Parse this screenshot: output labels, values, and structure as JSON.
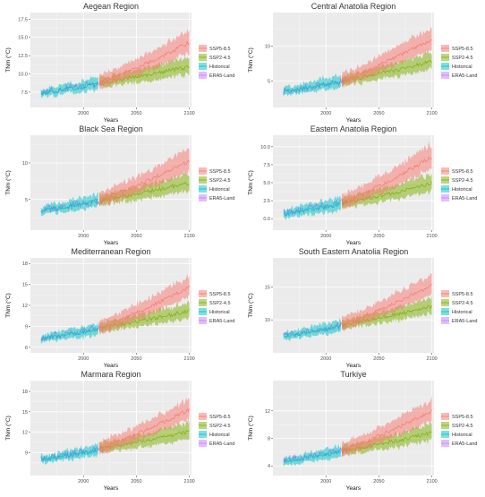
{
  "figure": {
    "series_names": [
      "SSP5-8.5",
      "SSP2-4.5",
      "Historical",
      "ERA5-Land"
    ],
    "colors": {
      "SSP5-8.5": "#f8766d",
      "SSP2-4.5": "#7cae00",
      "Historical": "#00bfc4",
      "ERA5-Land": "#c77cff",
      "panel_bg": "#ebebeb",
      "grid": "#ffffff"
    },
    "shared_xlabel": "Years",
    "shared_ylabel": "TNm (°C)"
  },
  "chart_data": [
    {
      "type": "line",
      "title": "Aegean Region",
      "xlabel": "Years",
      "ylabel": "TNm (°C)",
      "xlim": [
        1950,
        2102
      ],
      "ylim": [
        5.4,
        18.4
      ],
      "xticks": [
        2000,
        2050,
        2100
      ],
      "xtick_labels": [
        "2000",
        "2050",
        "2100"
      ],
      "yticks": [
        7.5,
        10.0,
        12.5,
        15.0,
        17.5
      ],
      "ytick_labels": [
        "7.5",
        "10.0",
        "12.5",
        "15.0",
        "17.5"
      ],
      "grid": true,
      "legend_position": "right",
      "series": [
        {
          "name": "ERA5-Land",
          "x_range": [
            1960,
            2020
          ],
          "start": 7.5,
          "end": 8.8,
          "spread": 0.6
        },
        {
          "name": "Historical",
          "x_range": [
            1960,
            2014
          ],
          "start": 7.3,
          "end": 8.6,
          "spread": 1.3
        },
        {
          "name": "SSP2-4.5",
          "x_range": [
            2015,
            2100
          ],
          "start": 8.8,
          "end": 11.0,
          "spread": 1.8
        },
        {
          "name": "SSP5-8.5",
          "x_range": [
            2015,
            2100
          ],
          "start": 8.9,
          "end": 14.3,
          "spread": 2.5
        }
      ]
    },
    {
      "type": "line",
      "title": "Central Anatolia Region",
      "xlabel": "Years",
      "ylabel": "TNm (°C)",
      "xlim": [
        1950,
        2102
      ],
      "ylim": [
        1.2,
        14.8
      ],
      "xticks": [
        2000,
        2050,
        2100
      ],
      "xtick_labels": [
        "2000",
        "2050",
        "2100"
      ],
      "yticks": [
        5,
        10
      ],
      "ytick_labels": [
        "5",
        "10"
      ],
      "grid": true,
      "legend_position": "right",
      "series": [
        {
          "name": "ERA5-Land",
          "x_range": [
            1960,
            2020
          ],
          "start": 3.5,
          "end": 5.0,
          "spread": 0.7
        },
        {
          "name": "Historical",
          "x_range": [
            1960,
            2014
          ],
          "start": 3.5,
          "end": 4.9,
          "spread": 1.4
        },
        {
          "name": "SSP2-4.5",
          "x_range": [
            2015,
            2100
          ],
          "start": 5.0,
          "end": 7.8,
          "spread": 1.9
        },
        {
          "name": "SSP5-8.5",
          "x_range": [
            2015,
            2100
          ],
          "start": 5.1,
          "end": 11.0,
          "spread": 2.6
        }
      ]
    },
    {
      "type": "line",
      "title": "Black Sea Region",
      "xlabel": "Years",
      "ylabel": "TNm (°C)",
      "xlim": [
        1950,
        2102
      ],
      "ylim": [
        0.8,
        13.8
      ],
      "xticks": [
        2000,
        2050,
        2100
      ],
      "xtick_labels": [
        "2000",
        "2050",
        "2100"
      ],
      "yticks": [
        5,
        10
      ],
      "ytick_labels": [
        "5",
        "10"
      ],
      "grid": true,
      "legend_position": "right",
      "series": [
        {
          "name": "ERA5-Land",
          "x_range": [
            1960,
            2020
          ],
          "start": 3.5,
          "end": 4.9,
          "spread": 0.7
        },
        {
          "name": "Historical",
          "x_range": [
            1960,
            2014
          ],
          "start": 3.4,
          "end": 4.8,
          "spread": 1.4
        },
        {
          "name": "SSP2-4.5",
          "x_range": [
            2015,
            2100
          ],
          "start": 4.9,
          "end": 7.3,
          "spread": 1.9
        },
        {
          "name": "SSP5-8.5",
          "x_range": [
            2015,
            2100
          ],
          "start": 5.0,
          "end": 10.3,
          "spread": 2.6
        }
      ]
    },
    {
      "type": "line",
      "title": "Eastern Anatolia Region",
      "xlabel": "Years",
      "ylabel": "TNm (°C)",
      "xlim": [
        1950,
        2102
      ],
      "ylim": [
        -1.6,
        11.6
      ],
      "xticks": [
        2000,
        2050,
        2100
      ],
      "xtick_labels": [
        "2000",
        "2050",
        "2100"
      ],
      "yticks": [
        0.0,
        2.5,
        5.0,
        7.5,
        10.0
      ],
      "ytick_labels": [
        "0.0",
        "2.5",
        "5.0",
        "7.5",
        "10.0"
      ],
      "grid": true,
      "legend_position": "right",
      "series": [
        {
          "name": "ERA5-Land",
          "x_range": [
            1960,
            2020
          ],
          "start": 0.7,
          "end": 2.3,
          "spread": 0.7
        },
        {
          "name": "Historical",
          "x_range": [
            1960,
            2014
          ],
          "start": 0.6,
          "end": 2.0,
          "spread": 1.5
        },
        {
          "name": "SSP2-4.5",
          "x_range": [
            2015,
            2100
          ],
          "start": 2.1,
          "end": 4.9,
          "spread": 2.0
        },
        {
          "name": "SSP5-8.5",
          "x_range": [
            2015,
            2100
          ],
          "start": 2.2,
          "end": 8.6,
          "spread": 2.7
        }
      ]
    },
    {
      "type": "line",
      "title": "Mediterranean Region",
      "xlabel": "Years",
      "ylabel": "TNm (°C)",
      "xlim": [
        1950,
        2102
      ],
      "ylim": [
        5.2,
        18.8
      ],
      "xticks": [
        2000,
        2050,
        2100
      ],
      "xtick_labels": [
        "2000",
        "2050",
        "2100"
      ],
      "yticks": [
        6,
        9,
        12,
        15,
        18
      ],
      "ytick_labels": [
        "6",
        "9",
        "12",
        "15",
        "18"
      ],
      "grid": true,
      "legend_position": "right",
      "series": [
        {
          "name": "ERA5-Land",
          "x_range": [
            1960,
            2020
          ],
          "start": 7.3,
          "end": 8.9,
          "spread": 0.6
        },
        {
          "name": "Historical",
          "x_range": [
            1960,
            2014
          ],
          "start": 7.2,
          "end": 8.5,
          "spread": 1.3
        },
        {
          "name": "SSP2-4.5",
          "x_range": [
            2015,
            2100
          ],
          "start": 8.8,
          "end": 11.2,
          "spread": 1.8
        },
        {
          "name": "SSP5-8.5",
          "x_range": [
            2015,
            2100
          ],
          "start": 8.9,
          "end": 14.6,
          "spread": 2.5
        }
      ]
    },
    {
      "type": "line",
      "title": "South Eastern Anatolia Region",
      "xlabel": "Years",
      "ylabel": "TNm (°C)",
      "xlim": [
        1950,
        2102
      ],
      "ylim": [
        5.0,
        19.4
      ],
      "xticks": [
        2000,
        2050,
        2100
      ],
      "xtick_labels": [
        "2000",
        "2050",
        "2100"
      ],
      "yticks": [
        10,
        15
      ],
      "ytick_labels": [
        "10",
        "15"
      ],
      "grid": true,
      "legend_position": "right",
      "series": [
        {
          "name": "ERA5-Land",
          "x_range": [
            1960,
            2020
          ],
          "start": 7.6,
          "end": 9.3,
          "spread": 0.7
        },
        {
          "name": "Historical",
          "x_range": [
            1960,
            2014
          ],
          "start": 7.5,
          "end": 9.0,
          "spread": 1.4
        },
        {
          "name": "SSP2-4.5",
          "x_range": [
            2015,
            2100
          ],
          "start": 9.3,
          "end": 12.0,
          "spread": 1.9
        },
        {
          "name": "SSP5-8.5",
          "x_range": [
            2015,
            2100
          ],
          "start": 9.4,
          "end": 15.2,
          "spread": 2.6
        }
      ]
    },
    {
      "type": "line",
      "title": "Marmara Region",
      "xlabel": "Years",
      "ylabel": "TNm (°C)",
      "xlim": [
        1950,
        2102
      ],
      "ylim": [
        5.6,
        19.6
      ],
      "xticks": [
        2000,
        2050,
        2100
      ],
      "xtick_labels": [
        "2000",
        "2050",
        "2100"
      ],
      "yticks": [
        9,
        12,
        15,
        18
      ],
      "ytick_labels": [
        "9",
        "12",
        "15",
        "18"
      ],
      "grid": true,
      "legend_position": "right",
      "series": [
        {
          "name": "ERA5-Land",
          "x_range": [
            1960,
            2020
          ],
          "start": 8.0,
          "end": 9.6,
          "spread": 0.6
        },
        {
          "name": "Historical",
          "x_range": [
            1960,
            2014
          ],
          "start": 7.9,
          "end": 9.3,
          "spread": 1.3
        },
        {
          "name": "SSP2-4.5",
          "x_range": [
            2015,
            2100
          ],
          "start": 9.6,
          "end": 12.1,
          "spread": 1.9
        },
        {
          "name": "SSP5-8.5",
          "x_range": [
            2015,
            2100
          ],
          "start": 9.7,
          "end": 15.3,
          "spread": 2.6
        }
      ]
    },
    {
      "type": "line",
      "title": "Turkiye",
      "xlabel": "Years",
      "ylabel": "TNm (°C)",
      "xlim": [
        1950,
        2102
      ],
      "ylim": [
        2.6,
        16.4
      ],
      "xticks": [
        2000,
        2050,
        2100
      ],
      "xtick_labels": [
        "2000",
        "2050",
        "2100"
      ],
      "yticks": [
        4,
        8,
        12
      ],
      "ytick_labels": [
        "4",
        "8",
        "12"
      ],
      "grid": true,
      "legend_position": "right",
      "series": [
        {
          "name": "ERA5-Land",
          "x_range": [
            1960,
            2020
          ],
          "start": 4.8,
          "end": 6.3,
          "spread": 0.6
        },
        {
          "name": "Historical",
          "x_range": [
            1960,
            2014
          ],
          "start": 4.6,
          "end": 6.0,
          "spread": 1.3
        },
        {
          "name": "SSP2-4.5",
          "x_range": [
            2015,
            2100
          ],
          "start": 6.2,
          "end": 8.8,
          "spread": 1.9
        },
        {
          "name": "SSP5-8.5",
          "x_range": [
            2015,
            2100
          ],
          "start": 6.3,
          "end": 12.0,
          "spread": 2.6
        }
      ]
    }
  ]
}
